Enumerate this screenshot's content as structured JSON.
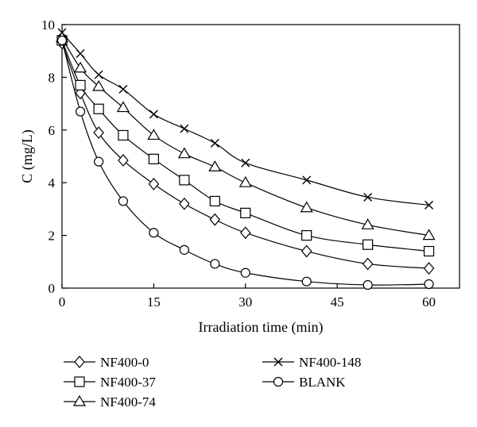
{
  "chart_data": {
    "type": "line",
    "title": "",
    "xlabel": "Irradiation time (min)",
    "ylabel": "C (mg/L)",
    "xlim": [
      0,
      65
    ],
    "ylim": [
      0,
      10
    ],
    "xticks": [
      0,
      15,
      30,
      45,
      60
    ],
    "yticks": [
      0,
      2,
      4,
      6,
      8,
      10
    ],
    "grid": false,
    "legend_position": "bottom",
    "series": [
      {
        "name": "NF400-0",
        "marker": "diamond",
        "x": [
          0,
          3,
          6,
          10,
          15,
          20,
          25,
          30,
          40,
          50,
          60
        ],
        "y": [
          9.3,
          7.4,
          5.9,
          4.85,
          3.95,
          3.2,
          2.6,
          2.1,
          1.4,
          0.92,
          0.75
        ]
      },
      {
        "name": "NF400-37",
        "marker": "square",
        "x": [
          0,
          3,
          6,
          10,
          15,
          20,
          25,
          30,
          40,
          50,
          60
        ],
        "y": [
          9.4,
          7.7,
          6.8,
          5.8,
          4.9,
          4.1,
          3.3,
          2.85,
          2.0,
          1.65,
          1.4
        ]
      },
      {
        "name": "NF400-74",
        "marker": "triangle",
        "x": [
          0,
          3,
          6,
          10,
          15,
          20,
          25,
          30,
          40,
          50,
          60
        ],
        "y": [
          9.5,
          8.35,
          7.65,
          6.85,
          5.8,
          5.1,
          4.6,
          4.0,
          3.05,
          2.4,
          2.0
        ]
      },
      {
        "name": "NF400-148",
        "marker": "cross",
        "x": [
          0,
          3,
          6,
          10,
          15,
          20,
          25,
          30,
          40,
          50,
          60
        ],
        "y": [
          9.7,
          8.9,
          8.1,
          7.55,
          6.6,
          6.05,
          5.5,
          4.75,
          4.1,
          3.45,
          3.15
        ]
      },
      {
        "name": "BLANK",
        "marker": "circle",
        "x": [
          0,
          3,
          6,
          10,
          15,
          20,
          25,
          30,
          40,
          50,
          60
        ],
        "y": [
          9.4,
          6.7,
          4.8,
          3.3,
          2.1,
          1.45,
          0.92,
          0.58,
          0.25,
          0.12,
          0.15
        ]
      }
    ]
  }
}
